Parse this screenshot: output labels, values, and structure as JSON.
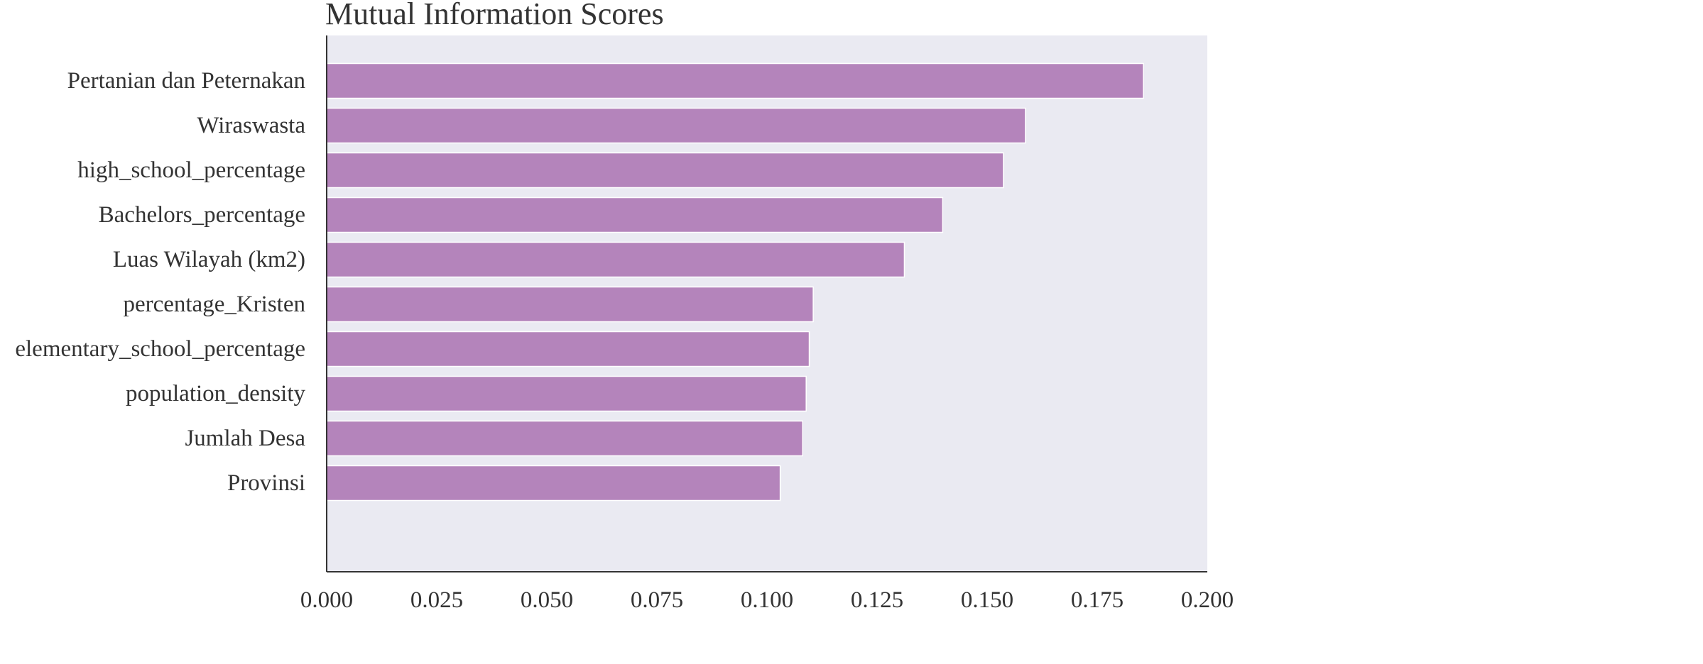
{
  "chart_data": {
    "type": "bar",
    "orientation": "horizontal",
    "title": "Mutual Information Scores",
    "xlabel": "",
    "ylabel": "",
    "categories": [
      "Pertanian dan Peternakan",
      "Wiraswasta",
      "high_school_percentage",
      "Bachelors_percentage",
      "Luas Wilayah (km2)",
      "percentage_Kristen",
      "elementary_school_percentage",
      "population_density",
      "Jumlah Desa",
      "Provinsi"
    ],
    "values": [
      0.1855,
      0.1587,
      0.1537,
      0.1399,
      0.1312,
      0.1105,
      0.1096,
      0.1089,
      0.1081,
      0.103
    ],
    "xlim": [
      0,
      0.2
    ],
    "xticks": [
      "0.000",
      "0.025",
      "0.050",
      "0.075",
      "0.100",
      "0.125",
      "0.150",
      "0.175",
      "0.200"
    ],
    "grid": false,
    "legend": "none",
    "colors": {
      "bar": "#b484bb",
      "bar_edge": "#ffffff",
      "plot_background": "#eaeaf2",
      "axis": "#333333",
      "text": "#333333"
    }
  }
}
